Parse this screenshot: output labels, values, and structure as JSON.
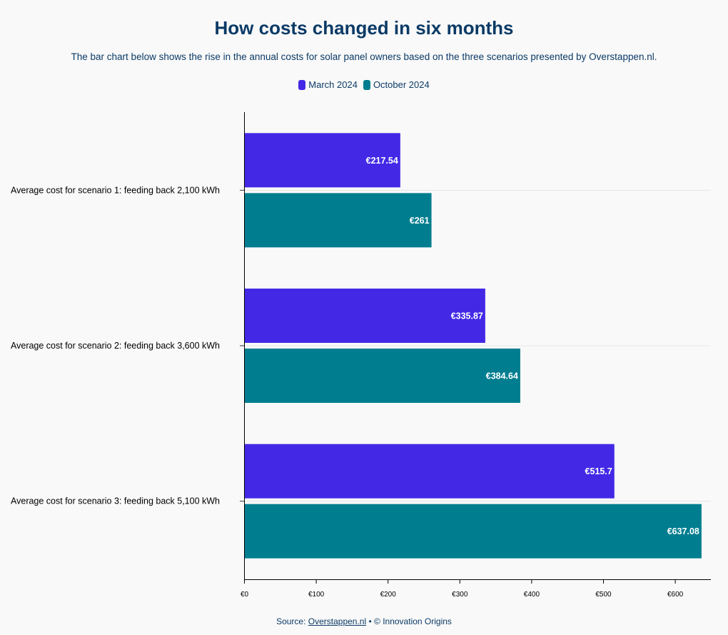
{
  "title": "How costs changed in six months",
  "subtitle": "The bar chart below shows the rise in the annual costs for solar panel owners based on the three scenarios presented by Overstappen.nl.",
  "source": {
    "prefix": "Source: ",
    "link": "Overstappen.nl",
    "suffix": " • © Innovation Origins"
  },
  "chart_data": {
    "type": "bar",
    "orientation": "horizontal",
    "categories": [
      "Average cost for scenario 1: feeding back 2,100 kWh",
      "Average cost for scenario 2: feeding back 3,600 kWh",
      "Average cost for scenario 3: feeding back 5,100 kWh"
    ],
    "series": [
      {
        "name": "March 2024",
        "color": "#4329e6",
        "values": [
          217.54,
          335.87,
          515.7
        ],
        "labels": [
          "€217.54",
          "€335.87",
          "€515.7"
        ]
      },
      {
        "name": "October 2024",
        "color": "#007e8f",
        "values": [
          261,
          384.64,
          637.08
        ],
        "labels": [
          "€261",
          "€384.64",
          "€637.08"
        ]
      }
    ],
    "xlim": [
      0,
      650
    ],
    "xticks": [
      0,
      100,
      200,
      300,
      400,
      500,
      600
    ],
    "xtick_labels": [
      "€0",
      "€100",
      "€200",
      "€300",
      "€400",
      "€500",
      "€600"
    ],
    "legend_position": "top-center",
    "grid": true
  }
}
